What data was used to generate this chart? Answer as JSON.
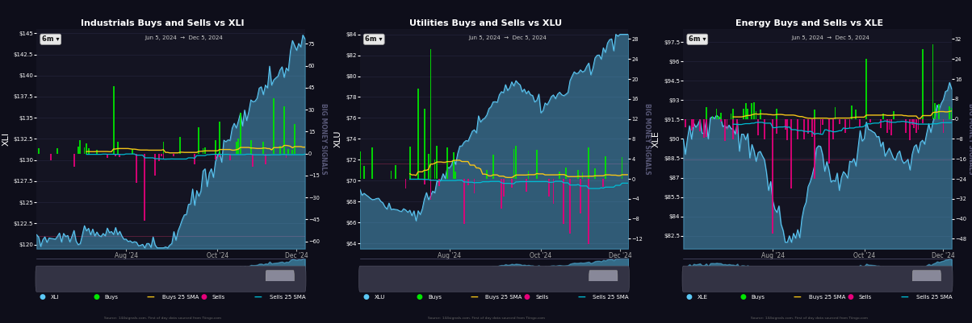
{
  "panels": [
    {
      "title": "Industrials Buys and Sells vs XLI",
      "ylabel": "XLI",
      "ticker": "XLI",
      "date_range": "Jun 5, 2024  →  Dec 5, 2024",
      "period_label": "6m",
      "price_ylim": [
        119.5,
        145.5
      ],
      "price_yticks": [
        120,
        122.5,
        125,
        127.5,
        130,
        132.5,
        135,
        137.5,
        140,
        142.5,
        145
      ],
      "price_ytick_labels": [
        "$120",
        "$122.5",
        "$125",
        "$127.5",
        "$130",
        "$132.5",
        "$135",
        "$137.5",
        "$140",
        "$142.5",
        "$145"
      ],
      "signal_ylim": [
        -65,
        85
      ],
      "signal_yticks": [
        -60,
        -45,
        -30,
        -15,
        0,
        15,
        30,
        45,
        60,
        75
      ],
      "xtick_labels": [
        "Aug '24",
        "Oct '24",
        "Dec '24"
      ],
      "price_color": "#5bc8f5",
      "buy_color": "#00e600",
      "sell_color": "#e6007a",
      "sma_buy_color": "#f5c518",
      "sma_sell_color": "#00bcd4",
      "bg_color": "#141422",
      "grid_color": "#333355",
      "text_color": "#ffffff"
    },
    {
      "title": "Utilities Buys and Sells vs XLU",
      "ylabel": "XLU",
      "ticker": "XLU",
      "date_range": "Jun 5, 2024  →  Dec 5, 2024",
      "period_label": "6m",
      "price_ylim": [
        63.5,
        84.5
      ],
      "price_yticks": [
        64,
        66,
        68,
        70,
        72,
        74,
        76,
        78,
        80,
        82,
        84
      ],
      "price_ytick_labels": [
        "$64",
        "$66",
        "$68",
        "$70",
        "$72",
        "$74",
        "$76",
        "$78",
        "$80",
        "$82",
        "$84"
      ],
      "signal_ylim": [
        -14,
        30
      ],
      "signal_yticks": [
        -12,
        -8,
        -4,
        0,
        4,
        8,
        12,
        16,
        20,
        24,
        28
      ],
      "xtick_labels": [
        "Aug '24",
        "Oct '24",
        "Dec '24"
      ],
      "price_color": "#5bc8f5",
      "buy_color": "#00e600",
      "sell_color": "#e6007a",
      "sma_buy_color": "#f5c518",
      "sma_sell_color": "#00bcd4",
      "bg_color": "#141422",
      "grid_color": "#333355",
      "text_color": "#ffffff"
    },
    {
      "title": "Energy Buys and Sells vs XLE",
      "ylabel": "XLE",
      "ticker": "XLE",
      "date_range": "Jun 5, 2024  →  Dec 5, 2024",
      "period_label": "6m",
      "price_ylim": [
        81.5,
        98.5
      ],
      "price_yticks": [
        82.5,
        84,
        85.5,
        87,
        88.5,
        90,
        91.5,
        93,
        94.5,
        96,
        97.5
      ],
      "price_ytick_labels": [
        "$82.5",
        "$84",
        "$85.5",
        "$87",
        "$88.5",
        "$90",
        "$91.5",
        "$93",
        "$94.5",
        "$96",
        "$97.5"
      ],
      "signal_ylim": [
        -52,
        36
      ],
      "signal_yticks": [
        -48,
        -40,
        -32,
        -24,
        -16,
        -8,
        0,
        8,
        16,
        24,
        32
      ],
      "xtick_labels": [
        "Aug '24",
        "Oct '24",
        "Dec '24"
      ],
      "price_color": "#5bc8f5",
      "buy_color": "#00e600",
      "sell_color": "#e6007a",
      "sma_buy_color": "#f5c518",
      "sma_sell_color": "#00bcd4",
      "bg_color": "#141422",
      "grid_color": "#333355",
      "text_color": "#ffffff"
    }
  ],
  "watermark": "BIG MONEY SIGNALS",
  "source_text": "Source: 144signals.com. First of day data sourced from Tiingo.com",
  "fig_bg": "#0e0e1a"
}
